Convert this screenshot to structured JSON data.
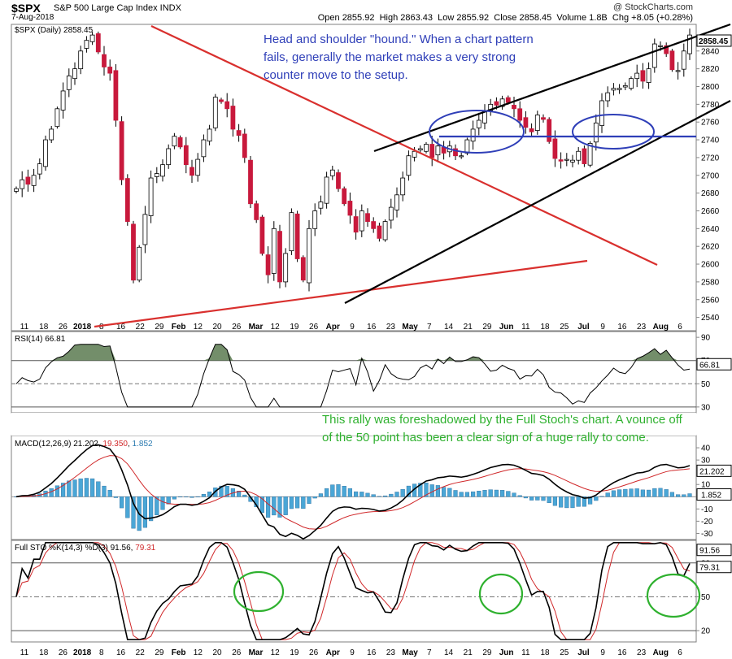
{
  "header": {
    "symbol": "$SPX",
    "description": "S&P 500 Large Cap Index INDX",
    "date": "7-Aug-2018",
    "brand": "@ StockCharts.com",
    "open_label": "Open",
    "open": "2855.92",
    "high_label": "High",
    "high": "2863.43",
    "low_label": "Low",
    "low": "2855.92",
    "close_label": "Close",
    "close": "2858.45",
    "volume_label": "Volume",
    "volume": "1.8B",
    "chg_label": "Chg",
    "chg": "+8.05 (+0.28%)"
  },
  "annotations": {
    "head_and_shoulders": "Head and shoulder \"hound.\"  When a chart pattern fails, generally the market makes a very strong counter move to the setup.",
    "full_stoch_note": "This rally was foreshadowed by the Full Stoch's chart.  A vounce off of the 50 point has been a clear sign of a huge rally to come."
  },
  "colors": {
    "up_candle": "#ffffff",
    "down_candle": "#c8193c",
    "red_trendline": "#d9302e",
    "black_trendline": "#000000",
    "blue_annotation": "#2f3fb8",
    "green_annotation": "#2fb12f",
    "macd_histogram": "#4aa6d6",
    "rsi_fill": "#5a7a50"
  },
  "chart_data": [
    {
      "type": "candlestick",
      "legend": "$SPX (Daily) 2858.45",
      "last_value_label": "2858.45",
      "ylim": [
        2525,
        2870
      ],
      "y_ticks": [
        2540,
        2560,
        2580,
        2600,
        2620,
        2640,
        2660,
        2680,
        2700,
        2720,
        2740,
        2760,
        2780,
        2800,
        2820,
        2840
      ],
      "y_tick_labels": [
        "2540",
        "2560",
        "2580",
        "2600",
        "2620",
        "2640",
        "2660",
        "2680",
        "2700",
        "2720",
        "2740",
        "2760",
        "2780",
        "2800",
        "2820",
        "2840"
      ],
      "x_tick_labels": [
        "11",
        "18",
        "26",
        "2018",
        "8",
        "16",
        "22",
        "29",
        "Feb",
        "12",
        "20",
        "26",
        "Mar",
        "12",
        "19",
        "26",
        "Apr",
        "9",
        "16",
        "23",
        "May",
        "7",
        "14",
        "21",
        "29",
        "Jun",
        "11",
        "18",
        "25",
        "Jul",
        "9",
        "16",
        "23",
        "Aug",
        "6"
      ],
      "close_path": [
        2685,
        2695,
        2690,
        2700,
        2713,
        2740,
        2752,
        2775,
        2795,
        2812,
        2820,
        2840,
        2852,
        2858,
        2839,
        2822,
        2815,
        2762,
        2695,
        2648,
        2582,
        2619,
        2656,
        2697,
        2702,
        2712,
        2730,
        2744,
        2732,
        2712,
        2700,
        2718,
        2740,
        2752,
        2788,
        2783,
        2775,
        2752,
        2745,
        2720,
        2668,
        2650,
        2612,
        2588,
        2640,
        2580,
        2612,
        2658,
        2606,
        2582,
        2640,
        2660,
        2670,
        2698,
        2706,
        2685,
        2668,
        2655,
        2636,
        2660,
        2648,
        2640,
        2629,
        2648,
        2664,
        2678,
        2697,
        2722,
        2727,
        2730,
        2735,
        2720,
        2733,
        2725,
        2733,
        2722,
        2722,
        2740,
        2752,
        2762,
        2773,
        2780,
        2779,
        2786,
        2782,
        2775,
        2762,
        2754,
        2749,
        2768,
        2763,
        2738,
        2719,
        2716,
        2718,
        2717,
        2727,
        2713,
        2736,
        2759,
        2784,
        2793,
        2798,
        2798,
        2801,
        2809,
        2815,
        2806,
        2820,
        2848,
        2846,
        2837,
        2819,
        2818,
        2840,
        2858
      ]
    },
    {
      "type": "line",
      "title": "RSI(14) 66.81",
      "last_value_label": "66.81",
      "ylim": [
        25,
        95
      ],
      "y_ticks": [
        30,
        50,
        70,
        90
      ],
      "y_tick_labels": [
        "30",
        "50",
        "70",
        "90"
      ]
    },
    {
      "type": "line",
      "title": "MACD(12,26,9) 21.202, 19.350, 1.852",
      "title_prefix": "MACD(12,26,9)",
      "macd_value": "21.202",
      "signal_value": "19.350",
      "hist_value": "1.852",
      "macd_last_label": "21.202",
      "hist_last_label": "1.852",
      "ylim": [
        -35,
        50
      ],
      "y_ticks": [
        -30,
        -20,
        -10,
        0,
        10,
        20,
        30,
        40
      ],
      "y_tick_labels": [
        "-30",
        "-20",
        "-10",
        "0",
        "10",
        "20",
        "30",
        "40"
      ]
    },
    {
      "type": "line",
      "title": "Full STO %K(14,3) %D(3) 91.56, 79.31",
      "title_prefix": "Full STO %K(14,3) %D(3)",
      "k_value": "91.56",
      "d_value": "79.31",
      "k_last_label": "91.56",
      "d_last_label": "79.31",
      "ylim": [
        10,
        100
      ],
      "y_ticks": [
        20,
        50,
        80
      ],
      "y_tick_labels": [
        "20",
        "50",
        "80"
      ]
    }
  ]
}
